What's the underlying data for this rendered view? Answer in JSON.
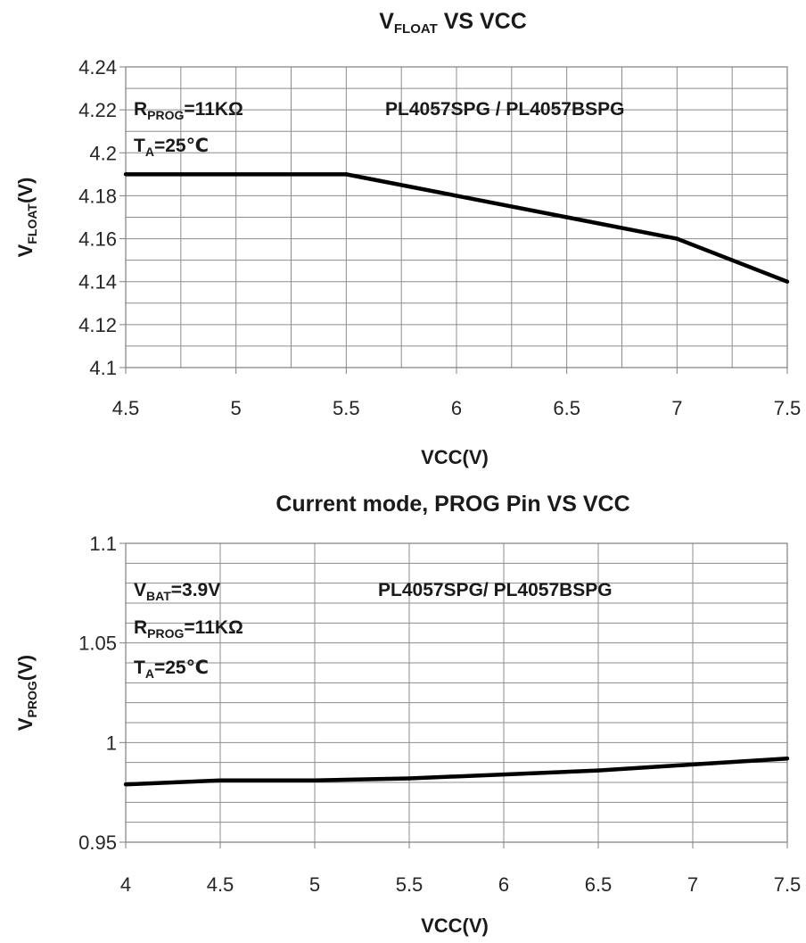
{
  "chart_data": [
    {
      "type": "line",
      "title": {
        "main": "V",
        "sub": "FLOAT",
        "rest": " VS VCC"
      },
      "xlabel": "VCC(V)",
      "ylabel": {
        "main": "V",
        "sub": "FLOAT",
        "rest": "(V)"
      },
      "xlim": [
        4.5,
        7.5
      ],
      "ylim": [
        4.1,
        4.24
      ],
      "x_ticks": [
        "4.5",
        "5",
        "5.5",
        "6",
        "6.5",
        "7",
        "7.5"
      ],
      "y_ticks": [
        "4.1",
        "4.12",
        "4.14",
        "4.16",
        "4.18",
        "4.2",
        "4.22",
        "4.24"
      ],
      "x_minor_step": 0.25,
      "y_minor_step": 0.01,
      "grid": true,
      "legend": "none",
      "annotations": [
        {
          "main": "R",
          "sub": "PROG",
          "rest": "=11KΩ"
        },
        {
          "main": "T",
          "sub": "A",
          "rest": "=25℃"
        },
        {
          "main": "PL4057SPG /  PL4057BSPG",
          "sub": "",
          "rest": ""
        }
      ],
      "series": [
        {
          "x": [
            4.5,
            5.0,
            5.5,
            6.0,
            6.5,
            7.0,
            7.5
          ],
          "values": [
            4.19,
            4.19,
            4.19,
            4.18,
            4.17,
            4.16,
            4.14
          ]
        }
      ],
      "color": "#000000"
    },
    {
      "type": "line",
      "title": {
        "main": "Current mode, PROG Pin VS VCC",
        "sub": "",
        "rest": ""
      },
      "xlabel": "VCC(V)",
      "ylabel": {
        "main": "V",
        "sub": "PROG",
        "rest": "(V)"
      },
      "xlim": [
        4,
        7.5
      ],
      "ylim": [
        0.95,
        1.1
      ],
      "x_ticks": [
        "4",
        "4.5",
        "5",
        "5.5",
        "6",
        "6.5",
        "7",
        "7.5"
      ],
      "y_ticks": [
        "0.95",
        "1",
        "1.05",
        "1.1"
      ],
      "x_minor_step": 0.5,
      "y_minor_step": 0.01,
      "grid": true,
      "legend": "none",
      "annotations": [
        {
          "main": "V",
          "sub": "BAT",
          "rest": "=3.9V"
        },
        {
          "main": "R",
          "sub": "PROG",
          "rest": "=11KΩ"
        },
        {
          "main": "T",
          "sub": "A",
          "rest": "=25℃"
        },
        {
          "main": "PL4057SPG/  PL4057BSPG",
          "sub": "",
          "rest": ""
        }
      ],
      "series": [
        {
          "x": [
            4.0,
            4.5,
            5.0,
            5.5,
            6.0,
            6.5,
            7.0,
            7.5
          ],
          "values": [
            0.979,
            0.981,
            0.981,
            0.982,
            0.984,
            0.986,
            0.989,
            0.992
          ]
        }
      ],
      "color": "#000000"
    }
  ]
}
